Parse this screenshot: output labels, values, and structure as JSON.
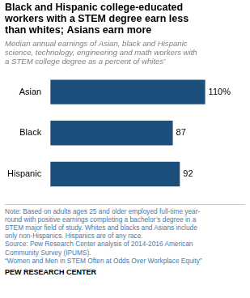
{
  "chart_data": {
    "type": "bar",
    "orientation": "horizontal",
    "title": [
      "Black and Hispanic college-educated",
      "workers with a STEM degree earn less",
      "than whites; Asians earn more"
    ],
    "subtitle": "Median annual earnings of Asian, black and Hispanic\nscience, technology, engineering and math workers with\na STEM college degree as a percent of whites’",
    "categories": [
      "Asian",
      "Black",
      "Hispanic"
    ],
    "values": [
      110,
      87,
      92
    ],
    "value_labels": [
      "110%",
      "87",
      "92"
    ],
    "data_labels": true,
    "color": "#1c4f7c",
    "xlim": [
      0,
      120
    ],
    "grid": false,
    "tick_labels": "y",
    "note": "Note: Based on adults ages 25 and older employed full-time year-\nround with positive earnings completing a bachelor’s degree in a\nSTEM major field of study. Whites and blacks and Asians include\nonly non-Hispanics. Hispanics are of any race.\nSource: Pew Research Center analysis of 2014-2016 American\nCommunity Survey (IPUMS).\n“Women and Men in STEM Often at Odds Over Workplace Equity”",
    "footer": "PEW RESEARCH CENTER"
  }
}
